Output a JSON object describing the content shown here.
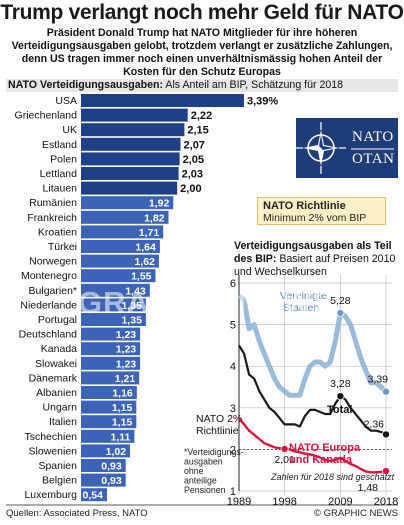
{
  "header": {
    "title": "Trump verlangt noch mehr Geld für NATO",
    "intro": "Präsident Donald Trump hat NATO Mitglieder für ihre höheren Verteidigungsaus­gaben gelobt, trotzdem verlangt er zusätzliche Zahlungen, denn US tragen immer noch einen unverhältnismässig hohen Anteil der Kosten für den Schutz Europas",
    "subtitle_bold": "NATO Verteidigungsausgaben:",
    "subtitle_rest": " Als Anteil am BIP, Schätzung für 2018"
  },
  "logo": {
    "line1": "NATO",
    "line2": "OTAN"
  },
  "guideline": {
    "title": "NATO Richtlinie",
    "subtitle": "Minimum 2% vom BIP"
  },
  "inset": {
    "title_bold": "Verteidigungsausgaben als Teil des BIP:",
    "title_rest": " Basiert auf Preisen 2010 und Wechselkursen",
    "note_2018": "Zahlen für 2018 sind geschätzt",
    "guide_label_1": "NATO 2%",
    "guide_label_2": "Richtlinie",
    "asterisk_note": "*Verteidigungs-\nausgaben\nohne\nanteilige\nPensionen"
  },
  "footer": {
    "source": "Quellen: Associated Press, NATO",
    "credit": "© GRAPHIC NEWS"
  },
  "watermark": "GRAPHIC NEWS",
  "colors": {
    "bar_dark": "#1f3f86",
    "bar_light": "#3d63b8",
    "us_line": "#8fb2d6",
    "total_line": "#1a1a1a",
    "europe_line": "#d9123f",
    "guide_bg": "#fbf1c9"
  },
  "chart_data": [
    {
      "type": "bar",
      "orientation": "horizontal",
      "title": "NATO Verteidigungsausgaben",
      "subtitle": "Als Anteil am BIP, Schätzung für 2018",
      "categories": [
        "USA",
        "Griechenland",
        "UK",
        "Estland",
        "Polen",
        "Lettland",
        "Litauen",
        "Rumänien",
        "Frankreich",
        "Kroatien",
        "Türkei",
        "Norwegen",
        "Montenegro",
        "Bulgarien*",
        "Niederlande",
        "Portugal",
        "Deutschland",
        "Kanada",
        "Slowakei",
        "Dänemark",
        "Albanien",
        "Ungarn",
        "Italien",
        "Tschechien",
        "Slowenien",
        "Spanien",
        "Belgien",
        "Luxemburg"
      ],
      "values": [
        3.39,
        2.22,
        2.15,
        2.07,
        2.05,
        2.03,
        2.0,
        1.92,
        1.82,
        1.71,
        1.64,
        1.62,
        1.55,
        1.43,
        1.35,
        1.35,
        1.23,
        1.23,
        1.23,
        1.21,
        1.16,
        1.15,
        1.15,
        1.11,
        1.02,
        0.93,
        0.93,
        0.54
      ],
      "value_labels": [
        "3,39%",
        "2,22",
        "2,15",
        "2,07",
        "2,05",
        "2,03",
        "2,00",
        "1,92",
        "1,82",
        "1,71",
        "1,64",
        "1,62",
        "1,55",
        "1,43",
        "1,35",
        "1,35",
        "1,23",
        "1,23",
        "1,23",
        "1,21",
        "1,16",
        "1,15",
        "1,15",
        "1,11",
        "1,02",
        "0,93",
        "0,93",
        "0,54"
      ],
      "highlight_threshold": 2.0
    },
    {
      "type": "line",
      "title": "Verteidigungsausgaben als Teil des BIP",
      "subtitle": "Basiert auf Preisen 2010 und Wechselkursen",
      "x_ticks": [
        "1989",
        "1998",
        "2009",
        "2018"
      ],
      "y_ticks": [
        "1",
        "2",
        "3",
        "4",
        "5",
        "6"
      ],
      "ylim": [
        1,
        6
      ],
      "xlim": [
        1989,
        2018
      ],
      "series": [
        {
          "name": "Vereinigte Staaten",
          "color": "#8fb2d6",
          "x": [
            1989,
            1990,
            1991,
            1992,
            1993,
            1994,
            1995,
            1996,
            1997,
            1998,
            1999,
            2000,
            2001,
            2002,
            2003,
            2004,
            2005,
            2006,
            2007,
            2008,
            2009,
            2010,
            2011,
            2012,
            2013,
            2014,
            2015,
            2016,
            2017,
            2018
          ],
          "y": [
            5.7,
            5.6,
            4.9,
            5.0,
            4.6,
            4.3,
            4.0,
            3.7,
            3.5,
            3.4,
            3.3,
            3.3,
            3.3,
            3.7,
            4.0,
            4.1,
            4.1,
            4.0,
            4.1,
            4.6,
            5.28,
            5.2,
            5.0,
            4.6,
            4.2,
            3.9,
            3.6,
            3.6,
            3.5,
            3.39
          ],
          "labels": [
            {
              "x": 2009,
              "text": "5,28"
            },
            {
              "x": 2018,
              "text": "3,39"
            }
          ]
        },
        {
          "name": "Total",
          "color": "#1a1a1a",
          "x": [
            1989,
            1990,
            1991,
            1992,
            1993,
            1994,
            1995,
            1996,
            1997,
            1998,
            1999,
            2000,
            2001,
            2002,
            2003,
            2004,
            2005,
            2006,
            2007,
            2008,
            2009,
            2010,
            2011,
            2012,
            2013,
            2014,
            2015,
            2016,
            2017,
            2018
          ],
          "y": [
            4.5,
            4.3,
            3.8,
            3.7,
            3.4,
            3.2,
            3.0,
            2.9,
            2.75,
            2.6,
            2.6,
            2.6,
            2.55,
            2.8,
            2.95,
            2.95,
            2.9,
            2.85,
            2.85,
            3.1,
            3.28,
            3.2,
            3.0,
            2.85,
            2.7,
            2.55,
            2.45,
            2.45,
            2.42,
            2.36
          ],
          "labels": [
            {
              "x": 2009,
              "text": "3,28"
            },
            {
              "x": 2018,
              "text": "2,36"
            }
          ]
        },
        {
          "name": "NATO Europa und Kanada",
          "color": "#d9123f",
          "x": [
            1989,
            1990,
            1991,
            1992,
            1993,
            1994,
            1995,
            1996,
            1997,
            1998,
            1999,
            2000,
            2001,
            2002,
            2003,
            2004,
            2005,
            2006,
            2007,
            2008,
            2009,
            2010,
            2011,
            2012,
            2013,
            2014,
            2015,
            2016,
            2017,
            2018
          ],
          "y": [
            2.75,
            2.6,
            2.45,
            2.35,
            2.25,
            2.15,
            2.1,
            2.05,
            2.03,
            2.01,
            2.0,
            1.95,
            1.93,
            1.9,
            1.88,
            1.85,
            1.8,
            1.75,
            1.72,
            1.75,
            1.8,
            1.72,
            1.65,
            1.6,
            1.53,
            1.47,
            1.45,
            1.45,
            1.46,
            1.48
          ],
          "labels": [
            {
              "x": 1998,
              "text": "2,01"
            },
            {
              "x": 2018,
              "text": "1,48"
            }
          ]
        }
      ],
      "reference_line": {
        "y": 2,
        "label": "NATO 2% Richtlinie"
      }
    }
  ]
}
